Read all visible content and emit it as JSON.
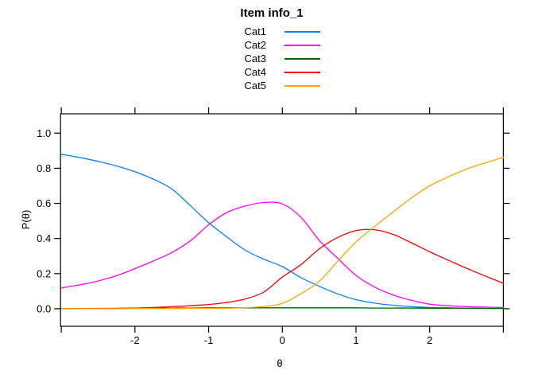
{
  "title": "Item info_1",
  "axis": {
    "x_label": "θ",
    "y_label": "P(θ)"
  },
  "chart_data": {
    "type": "line",
    "title": "Item info_1",
    "xlabel": "θ",
    "ylabel": "P(θ)",
    "xlim": [
      -3.01,
      3.0
    ],
    "ylim": [
      -0.1,
      1.11
    ],
    "x_ticks": [
      -3,
      -2,
      -1,
      0,
      1,
      2,
      3
    ],
    "x_tick_labels": [
      "",
      "-2",
      "-1",
      "0",
      "1",
      "2",
      ""
    ],
    "y_ticks": [
      0,
      0.2,
      0.4,
      0.6,
      0.8,
      1.0
    ],
    "y_tick_labels": [
      "0.0",
      "0.2",
      "0.4",
      "0.6",
      "0.8",
      "1.0"
    ],
    "grid": false,
    "legend_position": "top",
    "x": [
      -3,
      -2.75,
      -2.5,
      -2.25,
      -2,
      -1.75,
      -1.5,
      -1.25,
      -1,
      -0.75,
      -0.5,
      -0.25,
      0,
      0.25,
      0.5,
      0.75,
      1,
      1.25,
      1.5,
      1.75,
      2,
      2.25,
      2.5,
      2.75,
      3
    ],
    "series": [
      {
        "name": "Cat1",
        "color": "#0080ff",
        "values": [
          0.88,
          0.861,
          0.839,
          0.813,
          0.78,
          0.738,
          0.682,
          0.588,
          0.49,
          0.408,
          0.333,
          0.282,
          0.24,
          0.178,
          0.128,
          0.085,
          0.052,
          0.032,
          0.02,
          0.012,
          0.007,
          0.005,
          0.003,
          0.002,
          0.001
        ]
      },
      {
        "name": "Cat2",
        "color": "#ff00ff",
        "values": [
          0.118,
          0.136,
          0.158,
          0.188,
          0.228,
          0.272,
          0.32,
          0.386,
          0.478,
          0.548,
          0.585,
          0.605,
          0.597,
          0.522,
          0.39,
          0.288,
          0.19,
          0.124,
          0.079,
          0.048,
          0.026,
          0.017,
          0.012,
          0.009,
          0.007
        ]
      },
      {
        "name": "Cat3",
        "color": "#006400",
        "values": [
          0.001,
          0.001,
          0.002,
          0.002,
          0.003,
          0.003,
          0.004,
          0.004,
          0.005,
          0.005,
          0.005,
          0.005,
          0.005,
          0.005,
          0.005,
          0.005,
          0.005,
          0.004,
          0.004,
          0.004,
          0.003,
          0.003,
          0.003,
          0.002,
          0.002
        ]
      },
      {
        "name": "Cat4",
        "color": "#ff0000",
        "values": [
          0.0,
          0.0,
          0.001,
          0.002,
          0.004,
          0.007,
          0.012,
          0.017,
          0.024,
          0.036,
          0.056,
          0.095,
          0.18,
          0.25,
          0.34,
          0.405,
          0.445,
          0.45,
          0.424,
          0.376,
          0.324,
          0.277,
          0.231,
          0.187,
          0.145
        ]
      },
      {
        "name": "Cat5",
        "color": "#ffa500",
        "values": [
          0.0,
          0.0,
          0.0,
          0.0,
          0.001,
          0.001,
          0.001,
          0.002,
          0.002,
          0.003,
          0.006,
          0.013,
          0.03,
          0.085,
          0.155,
          0.27,
          0.38,
          0.467,
          0.55,
          0.63,
          0.7,
          0.75,
          0.795,
          0.83,
          0.862
        ]
      }
    ]
  }
}
